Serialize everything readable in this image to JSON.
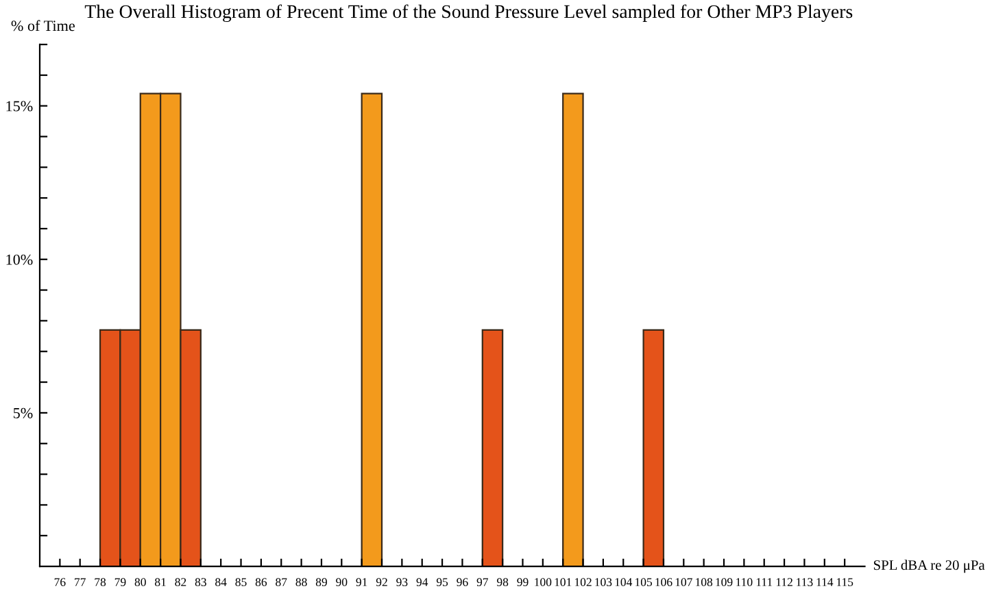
{
  "chart_data": {
    "type": "histogram",
    "title": "The Overall Histogram of Precent Time of the Sound Pressure Level sampled for Other MP3 Players",
    "xlabel": "SPL dBA re 20 μPa",
    "ylabel": "% of Time",
    "bins": [
      78,
      79,
      80,
      81,
      82,
      83,
      84,
      85,
      86,
      87,
      88,
      89,
      90,
      91,
      92,
      93,
      94,
      95,
      96,
      97,
      98,
      99,
      100,
      101,
      102,
      103,
      104,
      105,
      106
    ],
    "values": [
      7.7,
      7.7,
      15.4,
      15.4,
      7.7,
      0,
      0,
      0,
      0,
      0,
      0,
      0,
      0,
      15.4,
      0,
      0,
      0,
      0,
      0,
      7.7,
      0,
      0,
      0,
      15.4,
      0,
      0,
      0,
      7.7
    ],
    "colors": [
      "#e4531a",
      "#e4531a",
      "#f39a1c",
      "#f39a1c",
      "#e4531a",
      null,
      null,
      null,
      null,
      null,
      null,
      null,
      null,
      "#f39a1c",
      null,
      null,
      null,
      null,
      null,
      "#e4531a",
      null,
      null,
      null,
      "#f39a1c",
      null,
      null,
      null,
      "#e4531a"
    ],
    "xlim": [
      75,
      116
    ],
    "ylim": [
      0,
      17
    ],
    "xticks": [
      76,
      77,
      78,
      79,
      80,
      81,
      82,
      83,
      84,
      85,
      86,
      87,
      88,
      89,
      90,
      91,
      92,
      93,
      94,
      95,
      96,
      97,
      98,
      99,
      100,
      101,
      102,
      103,
      104,
      105,
      106,
      107,
      108,
      109,
      110,
      111,
      112,
      113,
      114,
      115
    ],
    "yticks": [
      {
        "value": 1,
        "label": null
      },
      {
        "value": 2,
        "label": null
      },
      {
        "value": 3,
        "label": null
      },
      {
        "value": 4,
        "label": null
      },
      {
        "value": 5,
        "label": "5%"
      },
      {
        "value": 6,
        "label": null
      },
      {
        "value": 7,
        "label": null
      },
      {
        "value": 8,
        "label": null
      },
      {
        "value": 9,
        "label": null
      },
      {
        "value": 10,
        "label": "10%"
      },
      {
        "value": 11,
        "label": null
      },
      {
        "value": 12,
        "label": null
      },
      {
        "value": 13,
        "label": null
      },
      {
        "value": 14,
        "label": null
      },
      {
        "value": 15,
        "label": "15%"
      },
      {
        "value": 16,
        "label": null
      },
      {
        "value": 17,
        "label": null
      }
    ],
    "grid": false,
    "legend": false
  }
}
